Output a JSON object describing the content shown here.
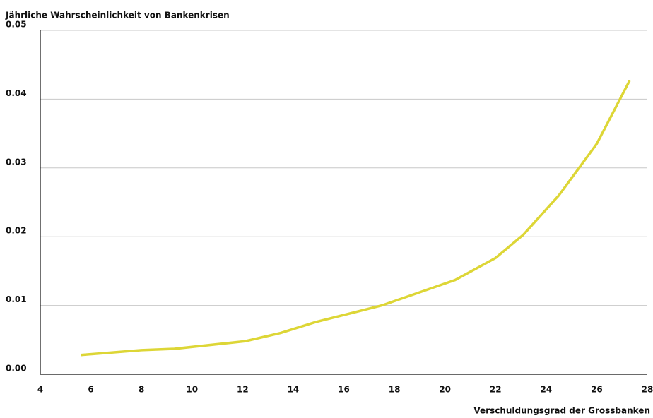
{
  "chart_data": {
    "type": "line",
    "title": "Jährliche Wahrscheinlichkeit von Bankenkrisen",
    "x_label": "Verschuldungsgrad der Grossbanken",
    "x": [
      5.6,
      8,
      9.3,
      12.1,
      13.5,
      14.9,
      17.5,
      20.4,
      22,
      23.1,
      24.5,
      26,
      27.3
    ],
    "series": [
      {
        "color": "#ddd636",
        "values": [
          0.0028,
          0.0035,
          0.0037,
          0.0048,
          0.006,
          0.0076,
          0.01,
          0.0137,
          0.0169,
          0.0203,
          0.026,
          0.0335,
          0.0427
        ]
      }
    ],
    "xlim": [
      4,
      28
    ],
    "xticks": [
      4,
      6,
      8,
      10,
      12,
      14,
      16,
      18,
      20,
      22,
      24,
      26,
      28
    ],
    "ylim": [
      0,
      0.05
    ],
    "yticks": [
      {
        "value": 0,
        "label": "0.00"
      },
      0.01,
      0.02,
      0.03,
      0.04,
      0.05
    ],
    "grid": true
  }
}
